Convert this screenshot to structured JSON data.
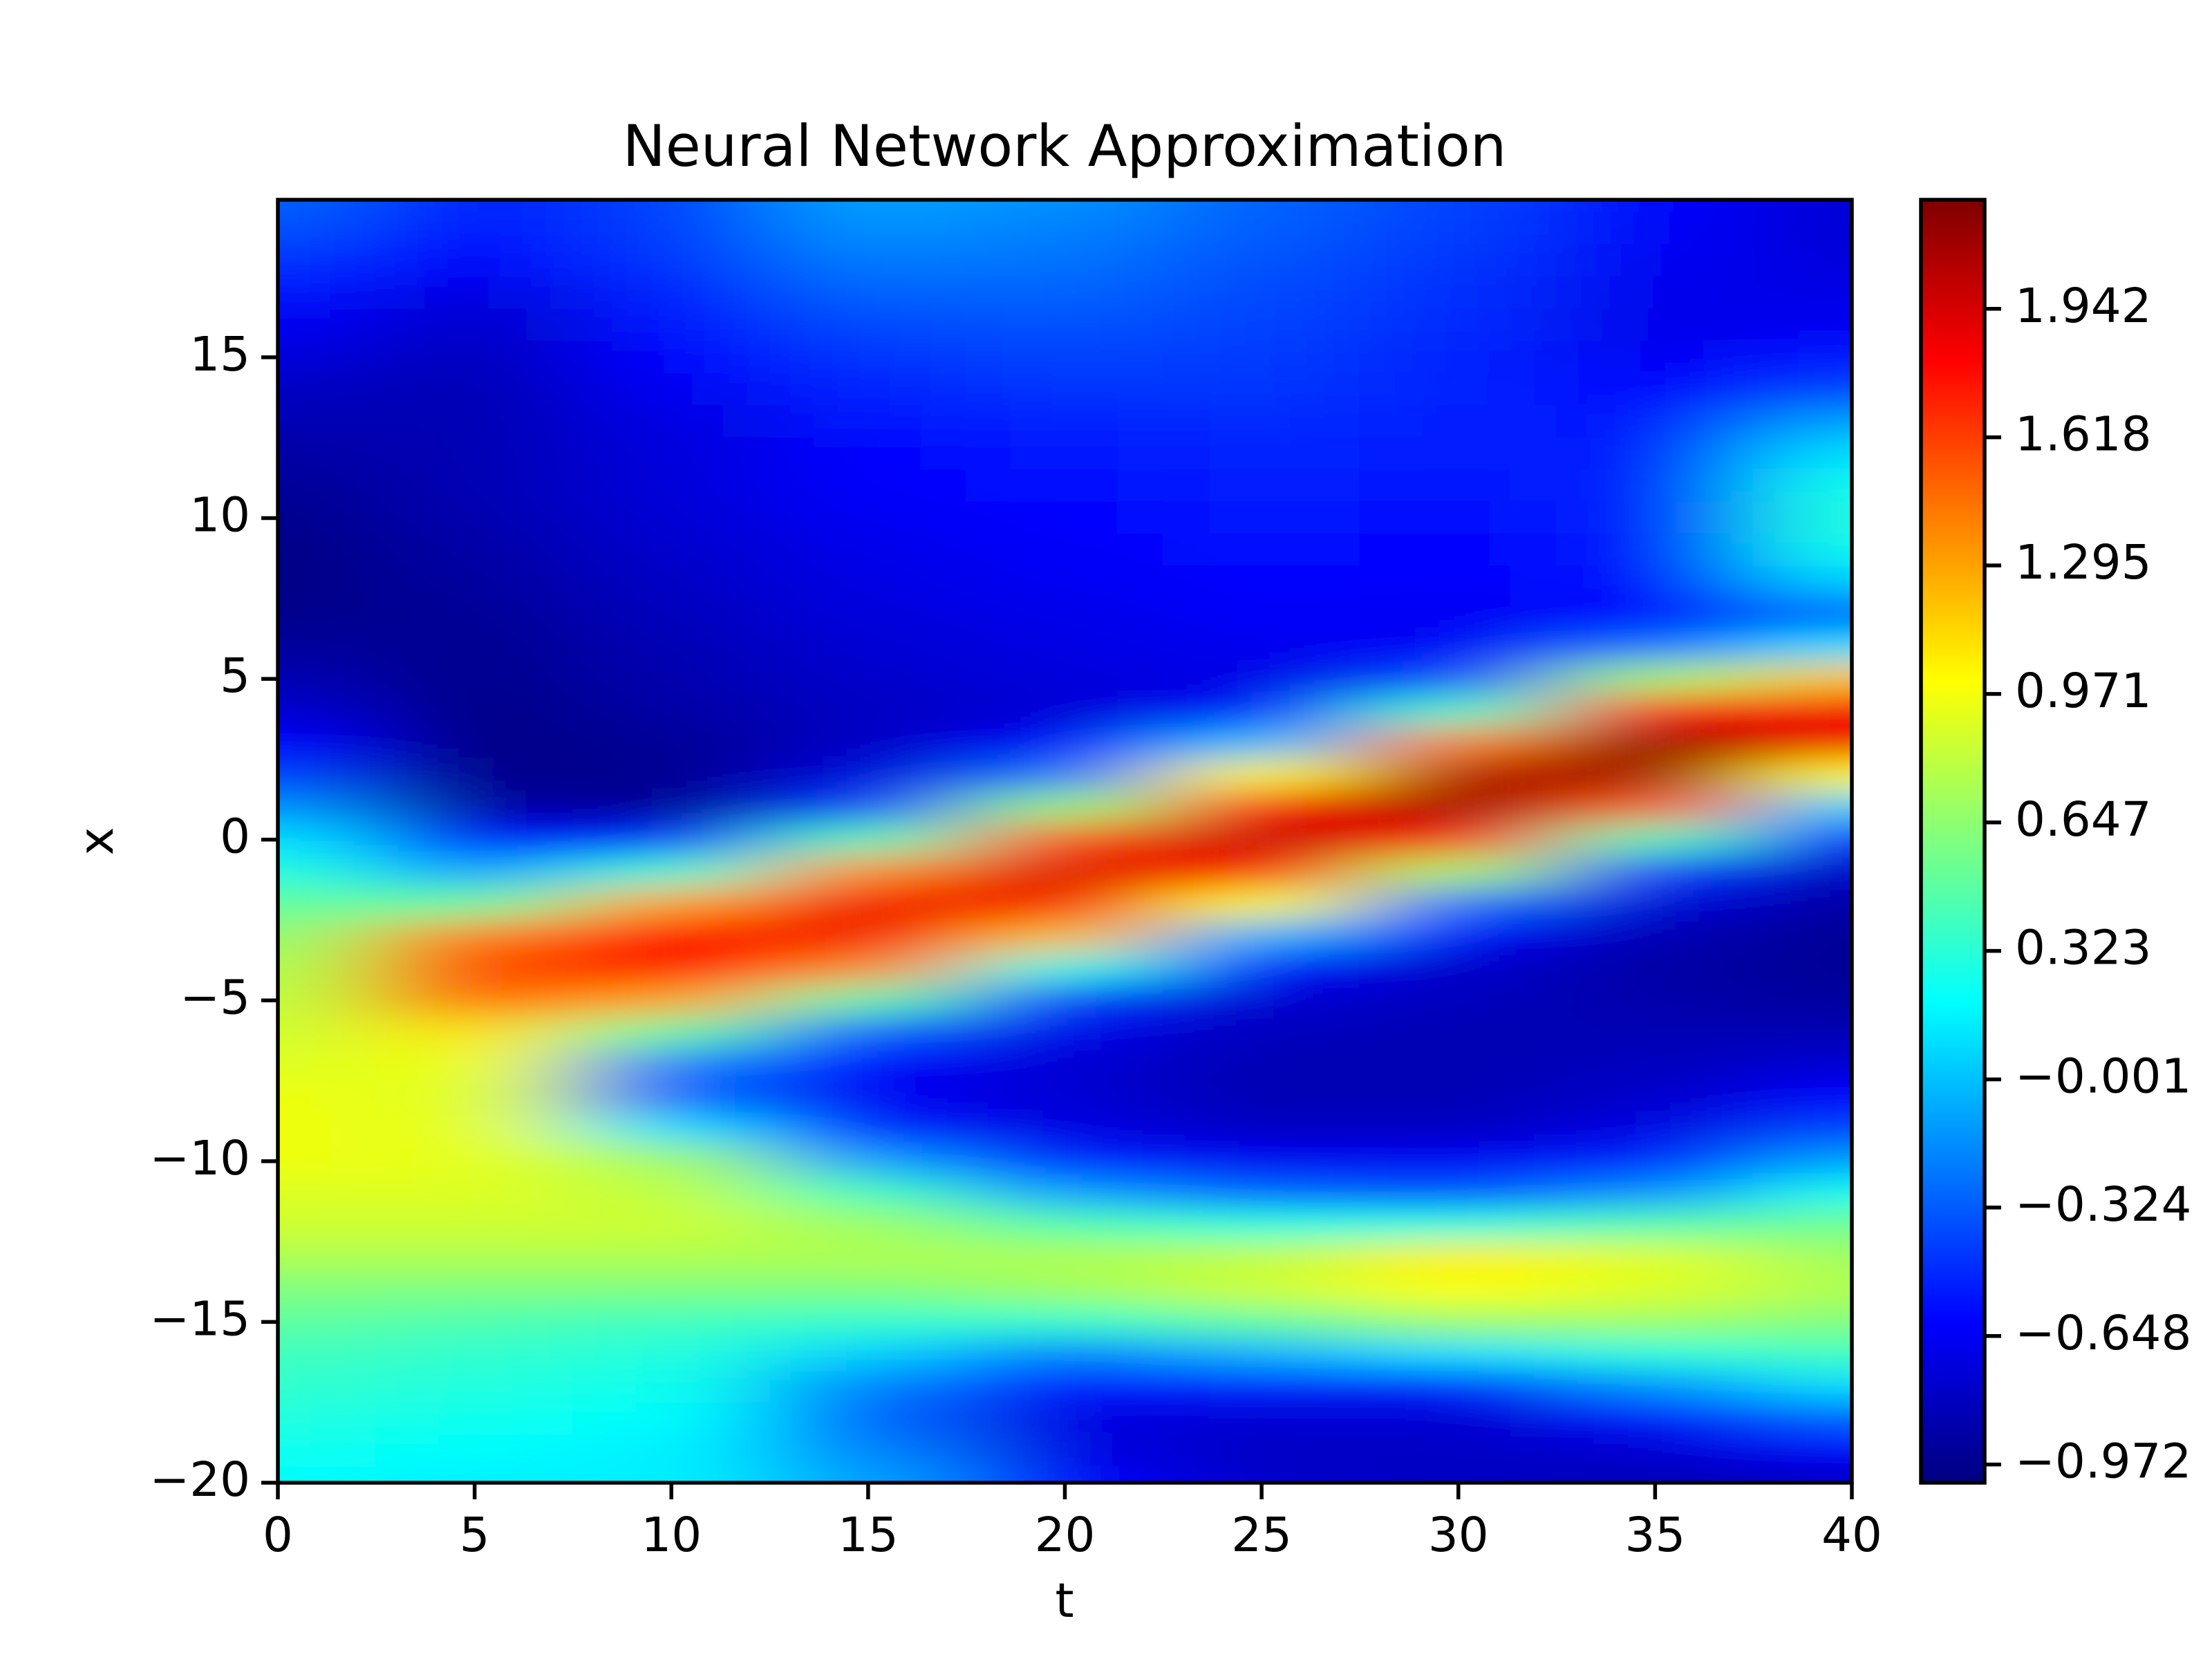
{
  "chart_data": {
    "type": "heatmap",
    "title": "Neural Network Approximation",
    "xlabel": "t",
    "ylabel": "x",
    "colormap": "jet",
    "x": [
      0,
      5,
      10,
      15,
      20,
      25,
      30,
      35,
      40
    ],
    "y": [
      20,
      19,
      18,
      17,
      16,
      15,
      14,
      13,
      12,
      11,
      10,
      9,
      8,
      7,
      6,
      5,
      4,
      3,
      2,
      1,
      0,
      -1,
      -2,
      -3,
      -4,
      -5,
      -6,
      -7,
      -8,
      -9,
      -10,
      -11,
      -12,
      -13,
      -14,
      -15,
      -16,
      -17,
      -18,
      -19,
      -20
    ],
    "z": [
      [
        -0.3,
        -0.35,
        -0.45,
        -0.55,
        -0.65,
        -0.72,
        -0.8,
        -0.85,
        -0.9,
        -0.95,
        -0.98,
        -1.0,
        -1.0,
        -0.98,
        -0.92,
        -0.85,
        -0.75,
        -0.6,
        -0.4,
        -0.15,
        0.1,
        0.3,
        0.5,
        0.65,
        0.75,
        0.8,
        0.85,
        0.9,
        0.95,
        0.95,
        0.95,
        0.9,
        0.85,
        0.75,
        0.6,
        0.5,
        0.4,
        0.35,
        0.3,
        0.25,
        0.2
      ],
      [
        -0.5,
        -0.55,
        -0.62,
        -0.7,
        -0.78,
        -0.82,
        -0.85,
        -0.85,
        -0.85,
        -0.85,
        -0.87,
        -0.9,
        -0.92,
        -0.95,
        -0.97,
        -0.98,
        -1.0,
        -1.0,
        -0.98,
        -0.9,
        -0.6,
        -0.1,
        0.5,
        1.4,
        1.6,
        1.45,
        1.1,
        0.95,
        0.9,
        0.92,
        0.92,
        0.9,
        0.85,
        0.75,
        0.6,
        0.45,
        0.35,
        0.3,
        0.25,
        0.2,
        0.15
      ],
      [
        -0.4,
        -0.42,
        -0.45,
        -0.5,
        -0.55,
        -0.6,
        -0.65,
        -0.7,
        -0.72,
        -0.73,
        -0.75,
        -0.77,
        -0.8,
        -0.82,
        -0.85,
        -0.87,
        -0.9,
        -0.95,
        -0.97,
        -0.95,
        -0.49,
        0.34,
        1.3,
        1.8,
        1.8,
        1.3,
        0.5,
        -0.2,
        -0.3,
        0.1,
        0.7,
        0.8,
        0.85,
        0.75,
        0.6,
        0.4,
        0.3,
        0.25,
        0.2,
        0.15,
        0.15
      ],
      [
        -0.1,
        -0.15,
        -0.22,
        -0.3,
        -0.38,
        -0.45,
        -0.5,
        -0.55,
        -0.6,
        -0.62,
        -0.65,
        -0.68,
        -0.7,
        -0.72,
        -0.75,
        -0.78,
        -0.8,
        -0.8,
        -0.72,
        -0.4,
        0.42,
        1.36,
        1.85,
        1.85,
        1.38,
        0.47,
        -0.31,
        -0.6,
        -0.65,
        -0.5,
        -0.1,
        0.4,
        0.7,
        0.75,
        0.6,
        0.35,
        0.05,
        -0.2,
        -0.3,
        -0.2,
        -0.1
      ],
      [
        -0.15,
        -0.2,
        -0.25,
        -0.3,
        -0.35,
        -0.4,
        -0.45,
        -0.5,
        -0.55,
        -0.58,
        -0.6,
        -0.63,
        -0.65,
        -0.68,
        -0.7,
        -0.72,
        -0.75,
        -0.62,
        -0.24,
        0.65,
        1.55,
        1.92,
        1.84,
        1.22,
        0.28,
        -0.43,
        -0.68,
        -0.75,
        -0.75,
        -0.7,
        -0.5,
        -0.1,
        0.45,
        0.75,
        0.7,
        0.35,
        -0.2,
        -0.55,
        -0.7,
        -0.7,
        -0.6
      ],
      [
        -0.3,
        -0.32,
        -0.35,
        -0.38,
        -0.4,
        -0.43,
        -0.45,
        -0.48,
        -0.5,
        -0.53,
        -0.55,
        -0.58,
        -0.6,
        -0.63,
        -0.66,
        -0.7,
        -0.55,
        -0.01,
        1.01,
        1.81,
        2.0,
        1.8,
        0.99,
        -0.04,
        -0.58,
        -0.75,
        -0.82,
        -0.85,
        -0.85,
        -0.8,
        -0.65,
        -0.3,
        0.3,
        0.8,
        0.85,
        0.5,
        -0.05,
        -0.5,
        -0.75,
        -0.8,
        -0.78
      ],
      [
        -0.4,
        -0.42,
        -0.45,
        -0.47,
        -0.48,
        -0.5,
        -0.5,
        -0.52,
        -0.53,
        -0.55,
        -0.57,
        -0.6,
        -0.62,
        -0.65,
        -0.65,
        -0.38,
        0.37,
        1.38,
        2.04,
        2.12,
        1.71,
        0.73,
        -0.24,
        -0.62,
        -0.78,
        -0.82,
        -0.85,
        -0.85,
        -0.85,
        -0.8,
        -0.65,
        -0.35,
        0.3,
        1.05,
        1.0,
        0.7,
        0.1,
        -0.5,
        -0.75,
        -0.8,
        -0.8
      ],
      [
        -0.6,
        -0.63,
        -0.65,
        -0.67,
        -0.68,
        -0.65,
        -0.6,
        -0.55,
        -0.52,
        -0.5,
        -0.5,
        -0.52,
        -0.55,
        -0.6,
        -0.26,
        0.7,
        1.7,
        2.16,
        2.11,
        1.5,
        0.43,
        -0.42,
        -0.73,
        -0.85,
        -0.9,
        -0.88,
        -0.85,
        -0.82,
        -0.78,
        -0.7,
        -0.5,
        -0.15,
        0.45,
        0.9,
        0.9,
        0.7,
        0.3,
        -0.15,
        -0.55,
        -0.75,
        -0.85
      ],
      [
        -0.75,
        -0.75,
        -0.72,
        -0.7,
        -0.65,
        -0.55,
        -0.4,
        -0.1,
        0.1,
        0.25,
        0.3,
        0.25,
        0.05,
        -0.3,
        0.1,
        1.2,
        1.85,
        1.85,
        1.0,
        0.05,
        -0.55,
        -0.8,
        -0.9,
        -0.95,
        -0.95,
        -0.92,
        -0.85,
        -0.75,
        -0.6,
        -0.4,
        -0.1,
        0.25,
        0.55,
        0.7,
        0.75,
        0.6,
        0.4,
        0.1,
        -0.3,
        -0.6,
        -0.8
      ]
    ],
    "xlim": [
      0,
      40
    ],
    "ylim": [
      -20,
      19.9
    ],
    "xticks": [
      0,
      5,
      10,
      15,
      20,
      25,
      30,
      35,
      40
    ],
    "yticks": [
      {
        "value": -20,
        "label": "−20"
      },
      {
        "value": -15,
        "label": "−15"
      },
      {
        "value": -10,
        "label": "−10"
      },
      {
        "value": -5,
        "label": "−5"
      },
      0,
      5,
      10,
      15
    ],
    "clim": [
      -1.018,
      2.217
    ],
    "cticks": [
      {
        "value": -0.972,
        "label": "−0.972"
      },
      {
        "value": -0.648,
        "label": "−0.648"
      },
      {
        "value": -0.324,
        "label": "−0.324"
      },
      {
        "value": -0.001,
        "label": "−0.001"
      },
      0.323,
      0.647,
      0.971,
      1.295,
      1.618,
      1.942
    ]
  }
}
